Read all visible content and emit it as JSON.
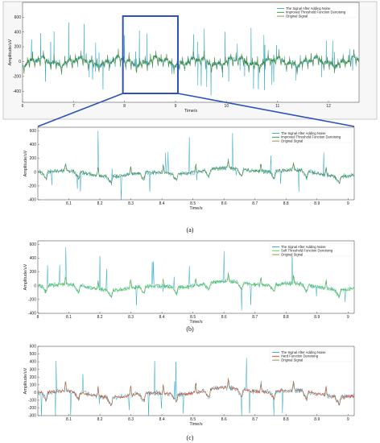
{
  "colors": {
    "noisy": "#2aa7c9",
    "improved": "#2d8a3a",
    "original": "#8a8a3a",
    "soft": "#41d640",
    "hard": "#d9412b",
    "zoombox": "#2f52b8"
  },
  "captions": [
    "(a)",
    "(b)",
    "(c)"
  ],
  "chart_data": [
    {
      "type": "line",
      "xlabel": "Time/s",
      "ylabel": "Amplitude/uV",
      "xlim": [
        6,
        12.6
      ],
      "ylim": [
        -550,
        800
      ],
      "xticks": [
        6,
        7,
        8,
        9,
        10,
        11,
        12
      ],
      "yticks": [
        -400,
        -200,
        0,
        200,
        400,
        600
      ],
      "legend": "top-right",
      "series": [
        {
          "name": "The Signal After Adding Noise",
          "color": "#2aa7c9"
        },
        {
          "name": "Improved Threshold Function Denoising",
          "color": "#2d8a3a"
        },
        {
          "name": "Original Signal",
          "color": "#8a8a3a"
        }
      ]
    },
    {
      "type": "line",
      "xlabel": "Time/s",
      "ylabel": "Amplitude/uV",
      "xlim": [
        8,
        9.02
      ],
      "ylim": [
        -400,
        650
      ],
      "xticks": [
        8.1,
        8.2,
        8.3,
        8.4,
        8.5,
        8.6,
        8.7,
        8.8,
        8.9,
        9
      ],
      "yticks": [
        -400,
        -200,
        0,
        200,
        400,
        600
      ],
      "legend": "top-right",
      "series": [
        {
          "name": "The Signal After Adding Noise",
          "color": "#2aa7c9"
        },
        {
          "name": "Improved Threshold Function Denoising",
          "color": "#2d8a3a"
        },
        {
          "name": "Original Signal",
          "color": "#8a8a3a"
        }
      ]
    },
    {
      "type": "line",
      "xlabel": "Time/s",
      "ylabel": "Amplitude/uV",
      "xlim": [
        8,
        9.02
      ],
      "ylim": [
        -400,
        650
      ],
      "xticks": [
        8,
        8.1,
        8.2,
        8.3,
        8.4,
        8.5,
        8.6,
        8.7,
        8.8,
        8.9,
        9
      ],
      "yticks": [
        -400,
        -200,
        0,
        200,
        400,
        600
      ],
      "legend": "top-right",
      "series": [
        {
          "name": "The Signal After Adding Noise",
          "color": "#2aa7c9"
        },
        {
          "name": "Soft Threshold Function Denoising",
          "color": "#41d640"
        },
        {
          "name": "Original Signal",
          "color": "#8a8a3a"
        }
      ]
    },
    {
      "type": "line",
      "xlabel": "Time/s",
      "ylabel": "Amplitude/uV",
      "xlim": [
        8,
        9.02
      ],
      "ylim": [
        -300,
        600
      ],
      "xticks": [
        8.1,
        8.2,
        8.3,
        8.4,
        8.5,
        8.6,
        8.7,
        8.8,
        8.9,
        9
      ],
      "yticks": [
        -300,
        -200,
        -100,
        0,
        100,
        200,
        300,
        400,
        500,
        600
      ],
      "legend": "top-right",
      "series": [
        {
          "name": "The Signal After Adding Noise",
          "color": "#2aa7c9"
        },
        {
          "name": "Hard Function Denoising",
          "color": "#d9412b"
        },
        {
          "name": "Original Signal",
          "color": "#8a8a3a"
        }
      ]
    }
  ]
}
